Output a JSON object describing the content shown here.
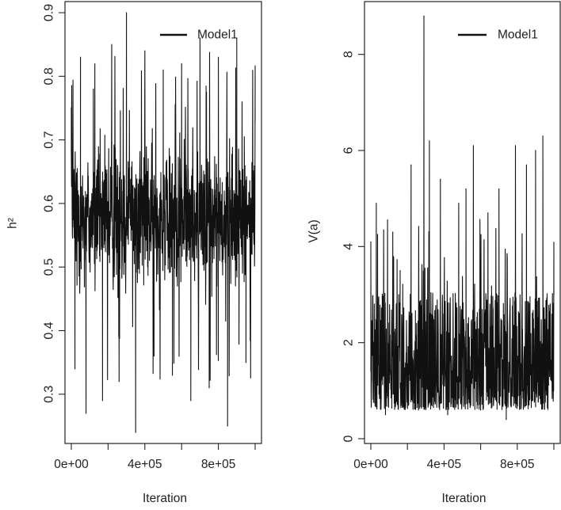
{
  "chart_data": [
    {
      "type": "line",
      "title": "",
      "xlabel": "Iteration",
      "ylabel": "h²",
      "xlim": [
        0,
        1000000
      ],
      "ylim": [
        0.23,
        0.91
      ],
      "xticks": [
        0,
        400000,
        800000
      ],
      "xtick_labels": [
        "0e+00",
        "4e+05",
        "8e+05"
      ],
      "yticks": [
        0.3,
        0.4,
        0.5,
        0.6,
        0.7,
        0.8,
        0.9
      ],
      "ytick_labels": [
        "0.3",
        "0.4",
        "0.5",
        "0.6",
        "0.7",
        "0.8",
        "0.9"
      ],
      "legend": {
        "position": "top-right",
        "entries": [
          "Model1"
        ]
      },
      "series": [
        {
          "name": "Model1",
          "color": "#111111",
          "trace_summary": {
            "center": 0.58,
            "core_low": 0.44,
            "core_high": 0.72,
            "min": 0.24,
            "max": 0.9
          },
          "x": [
            0,
            20000,
            50000,
            80000,
            120000,
            170000,
            220000,
            260000,
            300000,
            350000,
            400000,
            450000,
            500000,
            550000,
            600000,
            650000,
            700000,
            750000,
            800000,
            850000,
            900000,
            950000,
            1000000
          ],
          "values": [
            0.68,
            0.34,
            0.83,
            0.27,
            0.78,
            0.29,
            0.85,
            0.32,
            0.9,
            0.24,
            0.84,
            0.36,
            0.81,
            0.33,
            0.82,
            0.29,
            0.86,
            0.31,
            0.83,
            0.25,
            0.86,
            0.35,
            0.73
          ]
        }
      ]
    },
    {
      "type": "line",
      "title": "",
      "xlabel": "Iteration",
      "ylabel": "V(a)",
      "xlim": [
        0,
        1000000
      ],
      "ylim": [
        0,
        9
      ],
      "xticks": [
        0,
        400000,
        800000
      ],
      "xtick_labels": [
        "0e+00",
        "4e+05",
        "8e+05"
      ],
      "yticks": [
        0,
        2,
        4,
        6,
        8
      ],
      "ytick_labels": [
        "0",
        "2",
        "4",
        "6",
        "8"
      ],
      "legend": {
        "position": "top-right",
        "entries": [
          "Model1"
        ]
      },
      "series": [
        {
          "name": "Model1",
          "color": "#111111",
          "trace_summary": {
            "center": 1.6,
            "core_low": 0.8,
            "core_high": 2.8,
            "min": 0.35,
            "max": 8.8
          },
          "x": [
            0,
            30000,
            80000,
            120000,
            160000,
            220000,
            260000,
            290000,
            320000,
            380000,
            420000,
            480000,
            520000,
            560000,
            600000,
            640000,
            700000,
            740000,
            790000,
            850000,
            900000,
            940000,
            1000000
          ],
          "values": [
            4.1,
            4.9,
            0.5,
            4.3,
            3.5,
            5.7,
            0.6,
            8.8,
            6.2,
            5.4,
            0.5,
            4.9,
            5.2,
            6.1,
            0.6,
            4.7,
            5.2,
            0.4,
            6.1,
            5.7,
            6.0,
            6.3,
            3.0
          ]
        }
      ]
    }
  ]
}
